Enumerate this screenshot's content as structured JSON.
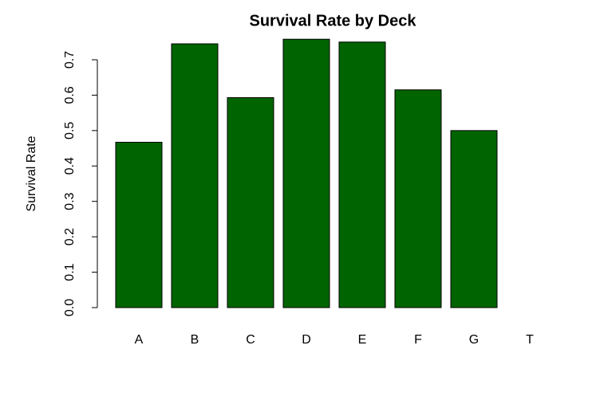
{
  "chart_data": {
    "type": "bar",
    "title": "Survival Rate by Deck",
    "y_label": "Survival Rate",
    "categories": [
      "A",
      "B",
      "C",
      "D",
      "E",
      "F",
      "G",
      "T"
    ],
    "values": [
      0.467,
      0.745,
      0.593,
      0.758,
      0.75,
      0.615,
      0.5,
      0
    ],
    "color": "#006400",
    "ylim": [
      0,
      0.78
    ],
    "yticks": [
      {
        "value": 0,
        "label": "0.0"
      },
      0.1,
      0.2,
      0.3,
      0.4,
      0.5,
      0.6,
      0.7
    ]
  }
}
